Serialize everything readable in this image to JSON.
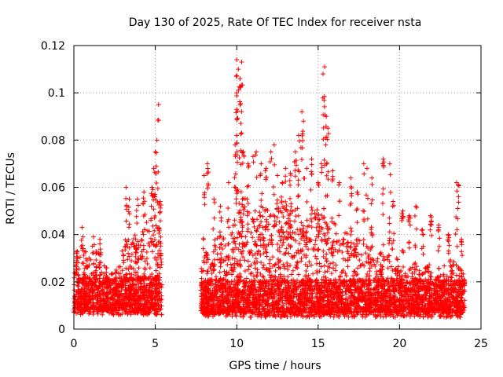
{
  "chart_data": {
    "type": "scatter",
    "title": "Day 130 of 2025, Rate Of TEC Index for receiver nsta",
    "xlabel": "GPS time / hours",
    "ylabel": "ROTI / TECUs",
    "xlim": [
      0,
      25
    ],
    "ylim": [
      0,
      0.12
    ],
    "xticks": [
      0,
      5,
      10,
      15,
      20,
      25
    ],
    "yticks": [
      0,
      0.02,
      0.04,
      0.06,
      0.08,
      0.1,
      0.12
    ],
    "xtick_labels": [
      "0",
      "5",
      "10",
      "15",
      "20",
      "25"
    ],
    "ytick_labels": [
      "0",
      "0.02",
      "0.04",
      "0.06",
      "0.08",
      "0.1",
      "0.12"
    ],
    "grid": true,
    "marker": "+",
    "color": "#ff0000",
    "series": [
      {
        "name": "ROTI",
        "segments": [
          {
            "x_start": 0.0,
            "x_end": 5.4,
            "baseline": 0.012,
            "upper_envelope": [
              [
                0.0,
                0.028
              ],
              [
                0.5,
                0.036
              ],
              [
                1.0,
                0.03
              ],
              [
                1.5,
                0.034
              ],
              [
                2.0,
                0.026
              ],
              [
                2.5,
                0.024
              ],
              [
                3.0,
                0.034
              ],
              [
                3.5,
                0.042
              ],
              [
                4.0,
                0.038
              ],
              [
                4.5,
                0.046
              ],
              [
                5.0,
                0.05
              ],
              [
                5.4,
                0.04
              ]
            ]
          },
          {
            "x_start": 7.8,
            "x_end": 24.0,
            "baseline": 0.011,
            "upper_envelope": [
              [
                7.8,
                0.03
              ],
              [
                8.5,
                0.036
              ],
              [
                9.0,
                0.04
              ],
              [
                9.5,
                0.042
              ],
              [
                10.0,
                0.05
              ],
              [
                10.5,
                0.056
              ],
              [
                11.0,
                0.05
              ],
              [
                11.5,
                0.054
              ],
              [
                12.0,
                0.05
              ],
              [
                12.5,
                0.052
              ],
              [
                13.0,
                0.054
              ],
              [
                13.5,
                0.052
              ],
              [
                14.0,
                0.05
              ],
              [
                14.5,
                0.048
              ],
              [
                15.0,
                0.054
              ],
              [
                15.5,
                0.05
              ],
              [
                16.0,
                0.046
              ],
              [
                16.5,
                0.042
              ],
              [
                17.0,
                0.04
              ],
              [
                17.5,
                0.038
              ],
              [
                18.0,
                0.036
              ],
              [
                18.5,
                0.034
              ],
              [
                19.0,
                0.034
              ],
              [
                19.5,
                0.03
              ],
              [
                20.0,
                0.03
              ],
              [
                20.5,
                0.028
              ],
              [
                21.0,
                0.028
              ],
              [
                21.5,
                0.026
              ],
              [
                22.0,
                0.028
              ],
              [
                22.5,
                0.026
              ],
              [
                23.0,
                0.03
              ],
              [
                23.5,
                0.028
              ],
              [
                24.0,
                0.024
              ]
            ]
          }
        ],
        "peaks": [
          [
            0.2,
            0.033
          ],
          [
            0.5,
            0.043
          ],
          [
            1.2,
            0.039
          ],
          [
            1.6,
            0.038
          ],
          [
            3.2,
            0.06
          ],
          [
            3.4,
            0.055
          ],
          [
            3.9,
            0.055
          ],
          [
            4.3,
            0.058
          ],
          [
            4.8,
            0.06
          ],
          [
            4.9,
            0.068
          ],
          [
            5.0,
            0.075
          ],
          [
            5.1,
            0.08
          ],
          [
            5.2,
            0.095
          ],
          [
            5.3,
            0.054
          ],
          [
            8.0,
            0.065
          ],
          [
            8.2,
            0.07
          ],
          [
            8.6,
            0.055
          ],
          [
            9.0,
            0.052
          ],
          [
            9.5,
            0.062
          ],
          [
            9.9,
            0.078
          ],
          [
            10.0,
            0.093
          ],
          [
            10.0,
            0.1
          ],
          [
            10.0,
            0.114
          ],
          [
            10.1,
            0.11
          ],
          [
            10.2,
            0.106
          ],
          [
            10.3,
            0.113
          ],
          [
            10.3,
            0.083
          ],
          [
            10.4,
            0.075
          ],
          [
            10.7,
            0.07
          ],
          [
            11.0,
            0.073
          ],
          [
            11.2,
            0.075
          ],
          [
            11.5,
            0.07
          ],
          [
            11.8,
            0.068
          ],
          [
            12.1,
            0.075
          ],
          [
            12.3,
            0.078
          ],
          [
            12.5,
            0.065
          ],
          [
            12.8,
            0.062
          ],
          [
            13.0,
            0.068
          ],
          [
            13.3,
            0.066
          ],
          [
            13.6,
            0.075
          ],
          [
            13.8,
            0.082
          ],
          [
            14.0,
            0.092
          ],
          [
            14.1,
            0.088
          ],
          [
            14.3,
            0.068
          ],
          [
            14.6,
            0.072
          ],
          [
            15.0,
            0.062
          ],
          [
            15.2,
            0.07
          ],
          [
            15.3,
            0.108
          ],
          [
            15.4,
            0.111
          ],
          [
            15.5,
            0.09
          ],
          [
            15.6,
            0.085
          ],
          [
            15.9,
            0.067
          ],
          [
            16.3,
            0.062
          ],
          [
            17.0,
            0.064
          ],
          [
            17.4,
            0.058
          ],
          [
            17.8,
            0.07
          ],
          [
            18.0,
            0.068
          ],
          [
            18.3,
            0.064
          ],
          [
            19.0,
            0.072
          ],
          [
            19.4,
            0.07
          ],
          [
            19.6,
            0.054
          ],
          [
            20.2,
            0.05
          ],
          [
            20.6,
            0.048
          ],
          [
            21.0,
            0.052
          ],
          [
            21.4,
            0.042
          ],
          [
            21.9,
            0.048
          ],
          [
            22.4,
            0.044
          ],
          [
            23.0,
            0.04
          ],
          [
            23.5,
            0.062
          ],
          [
            23.6,
            0.061
          ],
          [
            23.8,
            0.038
          ]
        ]
      }
    ]
  }
}
